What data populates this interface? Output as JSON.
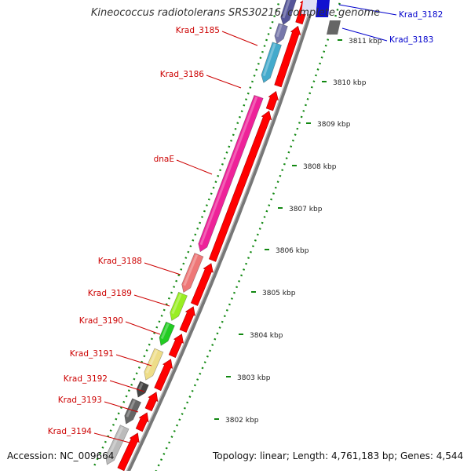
{
  "title": "Kineococcus radiotolerans SRS30216, complete genome",
  "footer": {
    "accession": "Accession: NC_009664",
    "summary": "Topology: linear; Length: 4,761,183 bp; Genes: 4,544"
  },
  "colors": {
    "forward": "#ff0000",
    "track": "#999999",
    "tick": "#118811",
    "label_red": "#cc0000",
    "label_blue": "#0000cc"
  },
  "scale_ticks": [
    {
      "label": "3811 kbp"
    },
    {
      "label": "3810 kbp"
    },
    {
      "label": "3809 kbp"
    },
    {
      "label": "3808 kbp"
    },
    {
      "label": "3807 kbp"
    },
    {
      "label": "3806 kbp"
    },
    {
      "label": "3805 kbp"
    },
    {
      "label": "3804 kbp"
    },
    {
      "label": "3803 kbp"
    },
    {
      "label": "3802 kbp"
    }
  ],
  "genes": [
    {
      "label": "Krad_3182",
      "strand": "reverse",
      "color": "#1010d0"
    },
    {
      "label": "Krad_3183",
      "strand": "reverse",
      "color": "#666666"
    },
    {
      "label": "Krad_3185",
      "strand": "reverse",
      "color": "#44aacc"
    },
    {
      "label": "Krad_3186",
      "strand": "reverse",
      "color": "#ff0000"
    },
    {
      "label": "dnaE",
      "strand": "reverse",
      "color": "#ee2299"
    },
    {
      "label": "Krad_3188",
      "strand": "reverse",
      "color": "#ee7777"
    },
    {
      "label": "Krad_3189",
      "strand": "reverse",
      "color": "#88dd22"
    },
    {
      "label": "Krad_3190",
      "strand": "reverse",
      "color": "#22cc22"
    },
    {
      "label": "Krad_3191",
      "strand": "reverse",
      "color": "#eedd88"
    },
    {
      "label": "Krad_3192",
      "strand": "reverse",
      "color": "#555555"
    },
    {
      "label": "Krad_3193",
      "strand": "reverse",
      "color": "#555555"
    },
    {
      "label": "Krad_3194",
      "strand": "reverse",
      "color": "#bbbbbb"
    }
  ]
}
